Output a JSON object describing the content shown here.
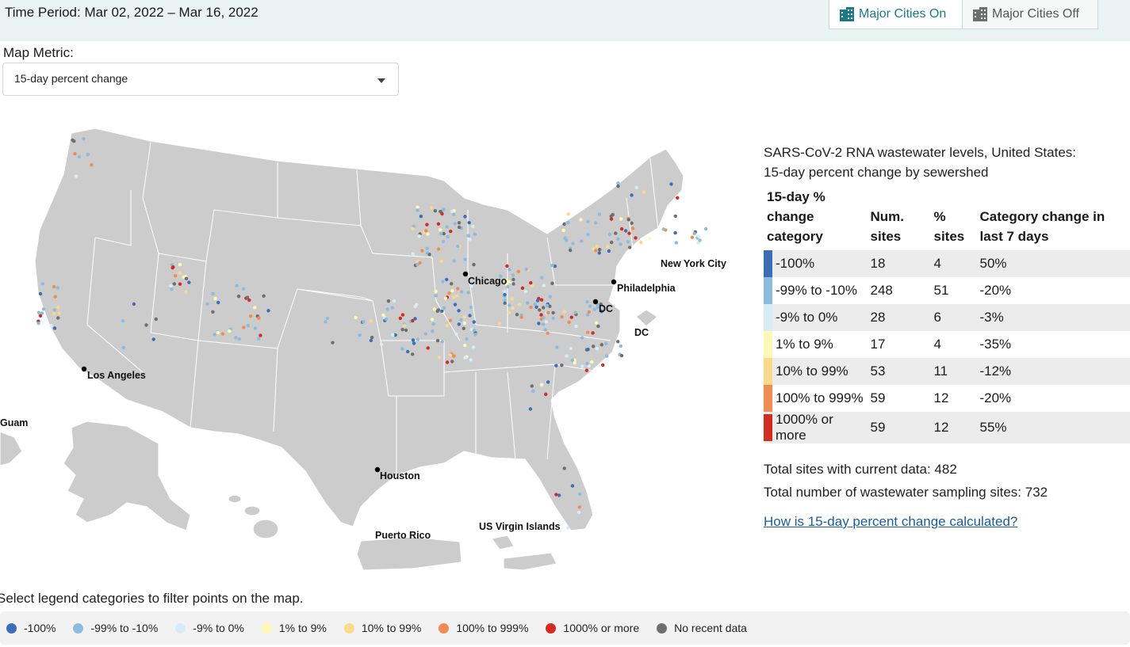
{
  "header": {
    "time_period": "Time Period: Mar 02, 2022 – Mar 16, 2022",
    "major_cities_on": "Major Cities On",
    "major_cities_off": "Major Cities Off"
  },
  "metric": {
    "label": "Map Metric:",
    "selected": "15-day percent change"
  },
  "map": {
    "city_labels": {
      "chicago": "Chicago",
      "philadelphia": "Philadelphia",
      "dc_main": "DC",
      "new_york": "New York City",
      "dc_inset": "DC",
      "los_angeles": "Los Angeles",
      "houston": "Houston",
      "guam": "Guam",
      "puerto_rico": "Puerto Rico",
      "usvi": "US Virgin Islands"
    },
    "point_colors": {
      "minus100": "#3a6fb8",
      "minus99_minus10": "#8bbce0",
      "minus9_0": "#d8ecf7",
      "plus1_9": "#fdf8b6",
      "plus10_99": "#fbd98a",
      "plus100_999": "#f28b52",
      "plus1000": "#d42b21",
      "no_data": "#6e6e6e"
    }
  },
  "panel": {
    "title_line1": "SARS-CoV-2 RNA wastewater levels, United States:",
    "title_line2": "15-day percent change by sewershed",
    "headers": {
      "category": "15-day % change category",
      "num_sites": "Num. sites",
      "pct_sites": "% sites",
      "change": "Category change in last 7 days"
    },
    "rows": [
      {
        "label": "-100%",
        "num": "18",
        "pct": "4",
        "change": "50%",
        "color": "#3a6fb8"
      },
      {
        "label": "-99% to -10%",
        "num": "248",
        "pct": "51",
        "change": "-20%",
        "color": "#8bbce0"
      },
      {
        "label": "-9% to 0%",
        "num": "28",
        "pct": "6",
        "change": "-3%",
        "color": "#d8ecf7"
      },
      {
        "label": "1% to 9%",
        "num": "17",
        "pct": "4",
        "change": "-35%",
        "color": "#fdf8b6"
      },
      {
        "label": "10% to 99%",
        "num": "53",
        "pct": "11",
        "change": "-12%",
        "color": "#fbd98a"
      },
      {
        "label": "100% to 999%",
        "num": "59",
        "pct": "12",
        "change": "-20%",
        "color": "#f28b52"
      },
      {
        "label": "1000% or more",
        "num": "59",
        "pct": "12",
        "change": "55%",
        "color": "#d42b21"
      }
    ],
    "total_current": "Total sites with current data: 482",
    "total_sites": "Total number of wastewater sampling sites: 732",
    "calc_link": "How is 15-day percent change calculated?"
  },
  "legend": {
    "hint": "Select legend categories to filter points on the map.",
    "items": [
      {
        "label": "-100%",
        "color": "#3a6fb8"
      },
      {
        "label": "-99% to -10%",
        "color": "#8bbce0"
      },
      {
        "label": "-9% to 0%",
        "color": "#d8ecf7"
      },
      {
        "label": "1% to 9%",
        "color": "#fdf8b6"
      },
      {
        "label": "10% to 99%",
        "color": "#fbd98a"
      },
      {
        "label": "100% to 999%",
        "color": "#f28b52"
      },
      {
        "label": "1000% or more",
        "color": "#d42b21"
      },
      {
        "label": "No recent data",
        "color": "#6e6e6e"
      }
    ]
  }
}
